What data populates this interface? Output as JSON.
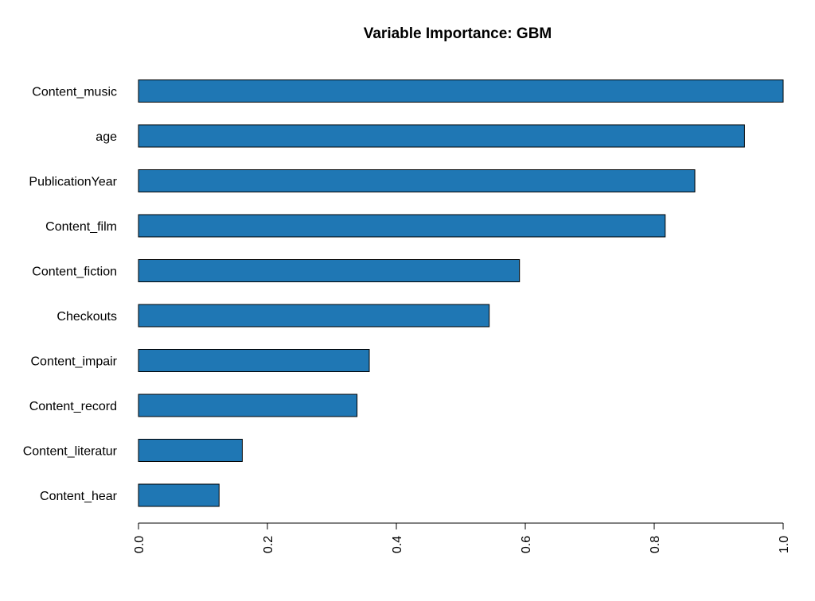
{
  "chart_data": {
    "type": "bar",
    "orientation": "horizontal",
    "title": "Variable Importance: GBM",
    "xlabel": "",
    "ylabel": "",
    "xlim": [
      0,
      1
    ],
    "xticks": [
      "0.0",
      "0.2",
      "0.4",
      "0.6",
      "0.8",
      "1.0"
    ],
    "grid": false,
    "legend": "none",
    "bar_color": "#1f77b4",
    "categories": [
      "Content_music",
      "age",
      "PublicationYear",
      "Content_film",
      "Content_fiction",
      "Checkouts",
      "Content_impair",
      "Content_record",
      "Content_literatur",
      "Content_hear"
    ],
    "values": [
      1.0,
      0.94,
      0.863,
      0.817,
      0.591,
      0.544,
      0.358,
      0.339,
      0.161,
      0.125
    ]
  }
}
